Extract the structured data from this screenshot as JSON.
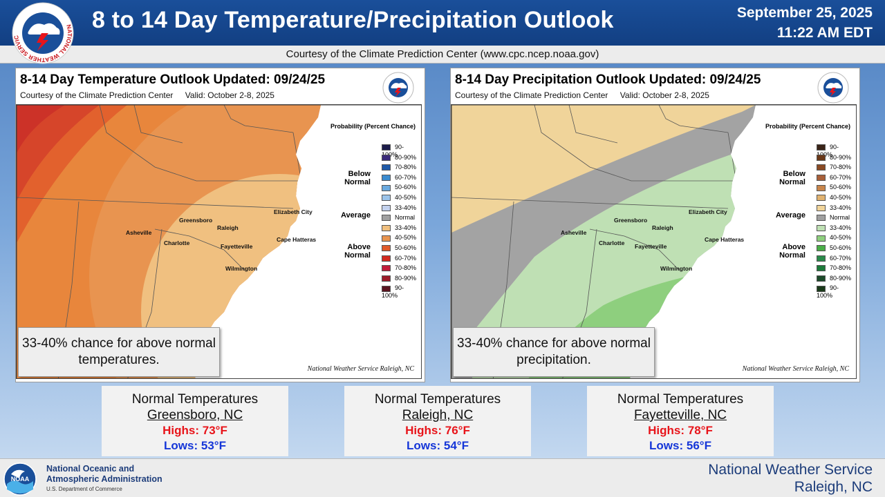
{
  "header": {
    "title": "8 to 14 Day Temperature/Precipitation Outlook",
    "date": "September 25, 2025",
    "time": "11:22 AM EDT",
    "courtesy": "Courtesy of the Climate Prediction Center (www.cpc.ncep.noaa.gov)",
    "logo_text": "NATIONAL WEATHER SERVICE"
  },
  "temperature_panel": {
    "title": "8-14 Day Temperature Outlook Updated: 09/24/25",
    "courtesy": "Courtesy of the Climate Prediction Center",
    "valid": "Valid: October 2-8, 2025",
    "legend_title": "Probability (Percent Chance)",
    "group_below": "Below Normal",
    "group_average": "Average",
    "group_above": "Above Normal",
    "legend": [
      {
        "label": "90-100%",
        "color": "#1c1c4a"
      },
      {
        "label": "80-90%",
        "color": "#3a2a7a"
      },
      {
        "label": "70-80%",
        "color": "#1f5aa8"
      },
      {
        "label": "60-70%",
        "color": "#3a8bd0"
      },
      {
        "label": "50-60%",
        "color": "#6aaae0"
      },
      {
        "label": "40-50%",
        "color": "#9cc4ea"
      },
      {
        "label": "33-40%",
        "color": "#c3d2ee"
      },
      {
        "label": "Normal",
        "color": "#a0a0a0"
      },
      {
        "label": "33-40%",
        "color": "#f0c080"
      },
      {
        "label": "40-50%",
        "color": "#e89450"
      },
      {
        "label": "50-60%",
        "color": "#e05a2a"
      },
      {
        "label": "60-70%",
        "color": "#d22a20"
      },
      {
        "label": "70-80%",
        "color": "#c21c3a"
      },
      {
        "label": "80-90%",
        "color": "#9c1c2a"
      },
      {
        "label": "90-100%",
        "color": "#5a1420"
      }
    ],
    "callout": "33-40% chance for above normal temperatures.",
    "credit": "National Weather Service Raleigh, NC"
  },
  "precipitation_panel": {
    "title": "8-14 Day Precipitation Outlook Updated: 09/24/25",
    "courtesy": "Courtesy of the Climate Prediction Center",
    "valid": "Valid: October 2-8, 2025",
    "legend_title": "Probability (Percent Chance)",
    "group_below": "Below Normal",
    "group_average": "Average",
    "group_above": "Above Normal",
    "legend": [
      {
        "label": "90-100%",
        "color": "#3a2418"
      },
      {
        "label": "80-90%",
        "color": "#6a3818"
      },
      {
        "label": "70-80%",
        "color": "#8a4a24"
      },
      {
        "label": "60-70%",
        "color": "#a8603a"
      },
      {
        "label": "50-60%",
        "color": "#c8864c"
      },
      {
        "label": "40-50%",
        "color": "#e0b270"
      },
      {
        "label": "33-40%",
        "color": "#f0d49a"
      },
      {
        "label": "Normal",
        "color": "#a0a0a0"
      },
      {
        "label": "33-40%",
        "color": "#bfe0b4"
      },
      {
        "label": "40-50%",
        "color": "#8ecf7e"
      },
      {
        "label": "50-60%",
        "color": "#4aae48"
      },
      {
        "label": "60-70%",
        "color": "#2a8a4a"
      },
      {
        "label": "70-80%",
        "color": "#1c7a3a"
      },
      {
        "label": "80-90%",
        "color": "#1c4a2a"
      },
      {
        "label": "90-100%",
        "color": "#1a3a1a"
      }
    ],
    "callout": "33-40% chance for above normal precipitation.",
    "credit": "National Weather Service Raleigh, NC"
  },
  "cities": {
    "elizabeth_city": "Elizabeth City",
    "greensboro": "Greensboro",
    "raleigh": "Raleigh",
    "asheville": "Asheville",
    "charlotte": "Charlotte",
    "fayetteville": "Fayetteville",
    "cape_hatteras": "Cape Hatteras",
    "wilmington": "Wilmington"
  },
  "normals": [
    {
      "title": "Normal Temperatures",
      "city": "Greensboro, NC",
      "highs": "Highs: 73°F",
      "lows": "Lows: 53°F"
    },
    {
      "title": "Normal Temperatures",
      "city": "Raleigh, NC",
      "highs": "Highs: 76°F",
      "lows": "Lows: 54°F"
    },
    {
      "title": "Normal Temperatures",
      "city": "Fayetteville, NC",
      "highs": "Highs: 78°F",
      "lows": "Lows: 56°F"
    }
  ],
  "footer": {
    "noaa_line1": "National Oceanic and",
    "noaa_line2": "Atmospheric Administration",
    "noaa_dept": "U.S. Department of Commerce",
    "noaa_logo_text": "NOAA",
    "nws_line1": "National Weather Service",
    "nws_line2": "Raleigh, NC"
  }
}
